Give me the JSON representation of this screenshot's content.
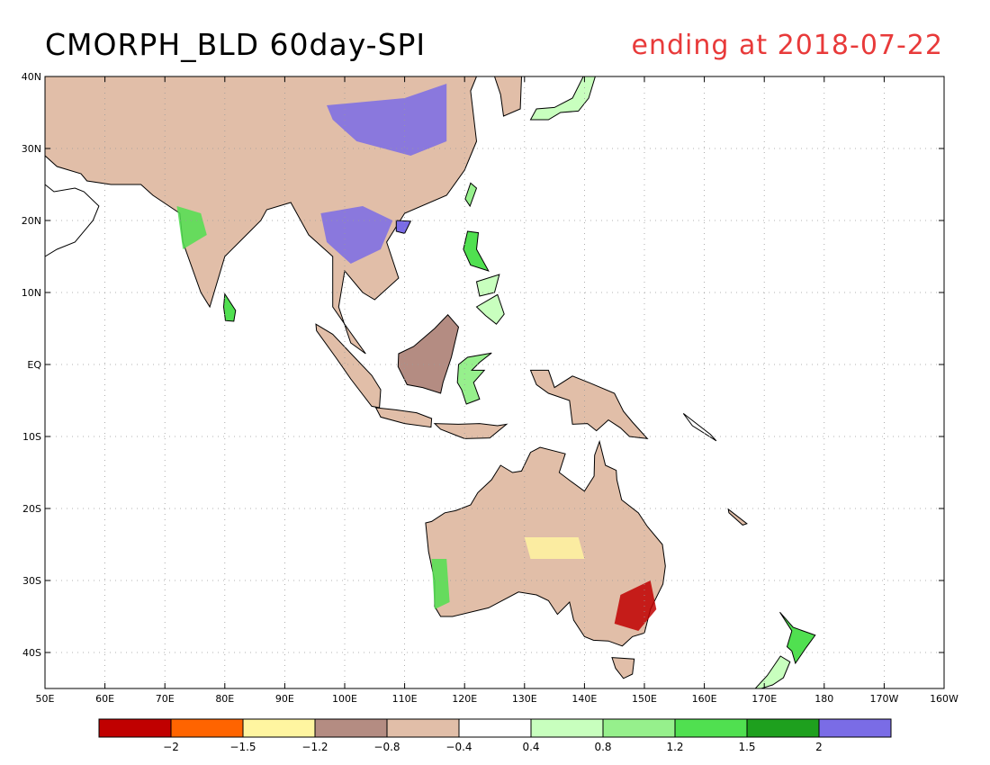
{
  "title": "CMORPH_BLD 60day-SPI",
  "subtitle": "ending at 2018-07-22",
  "colors": {
    "title_left": "#000000",
    "title_right": "#e83a3a",
    "coast": "#000000",
    "grid": "#9a9a9a"
  },
  "map": {
    "lon_range": [
      50,
      200
    ],
    "lat_range": [
      -45,
      40
    ],
    "lon_ticks": [
      "50E",
      "60E",
      "70E",
      "80E",
      "90E",
      "100E",
      "110E",
      "120E",
      "130E",
      "140E",
      "150E",
      "160E",
      "170E",
      "180",
      "170W",
      "160W"
    ],
    "lat_ticks": [
      "40N",
      "30N",
      "20N",
      "10N",
      "EQ",
      "10S",
      "20S",
      "30S",
      "40S"
    ]
  },
  "colorbar": {
    "colors": [
      "#c00000",
      "#ff6400",
      "#fff5a0",
      "#b48c82",
      "#e1bea8",
      "#ffffff",
      "#c8ffbe",
      "#96f08c",
      "#50e050",
      "#1ea01e",
      "#7a6ce6"
    ],
    "labels": [
      "-2",
      "-1.5",
      "-1.2",
      "-0.8",
      "-0.4",
      "0.4",
      "0.8",
      "1.2",
      "1.5",
      "2"
    ]
  }
}
